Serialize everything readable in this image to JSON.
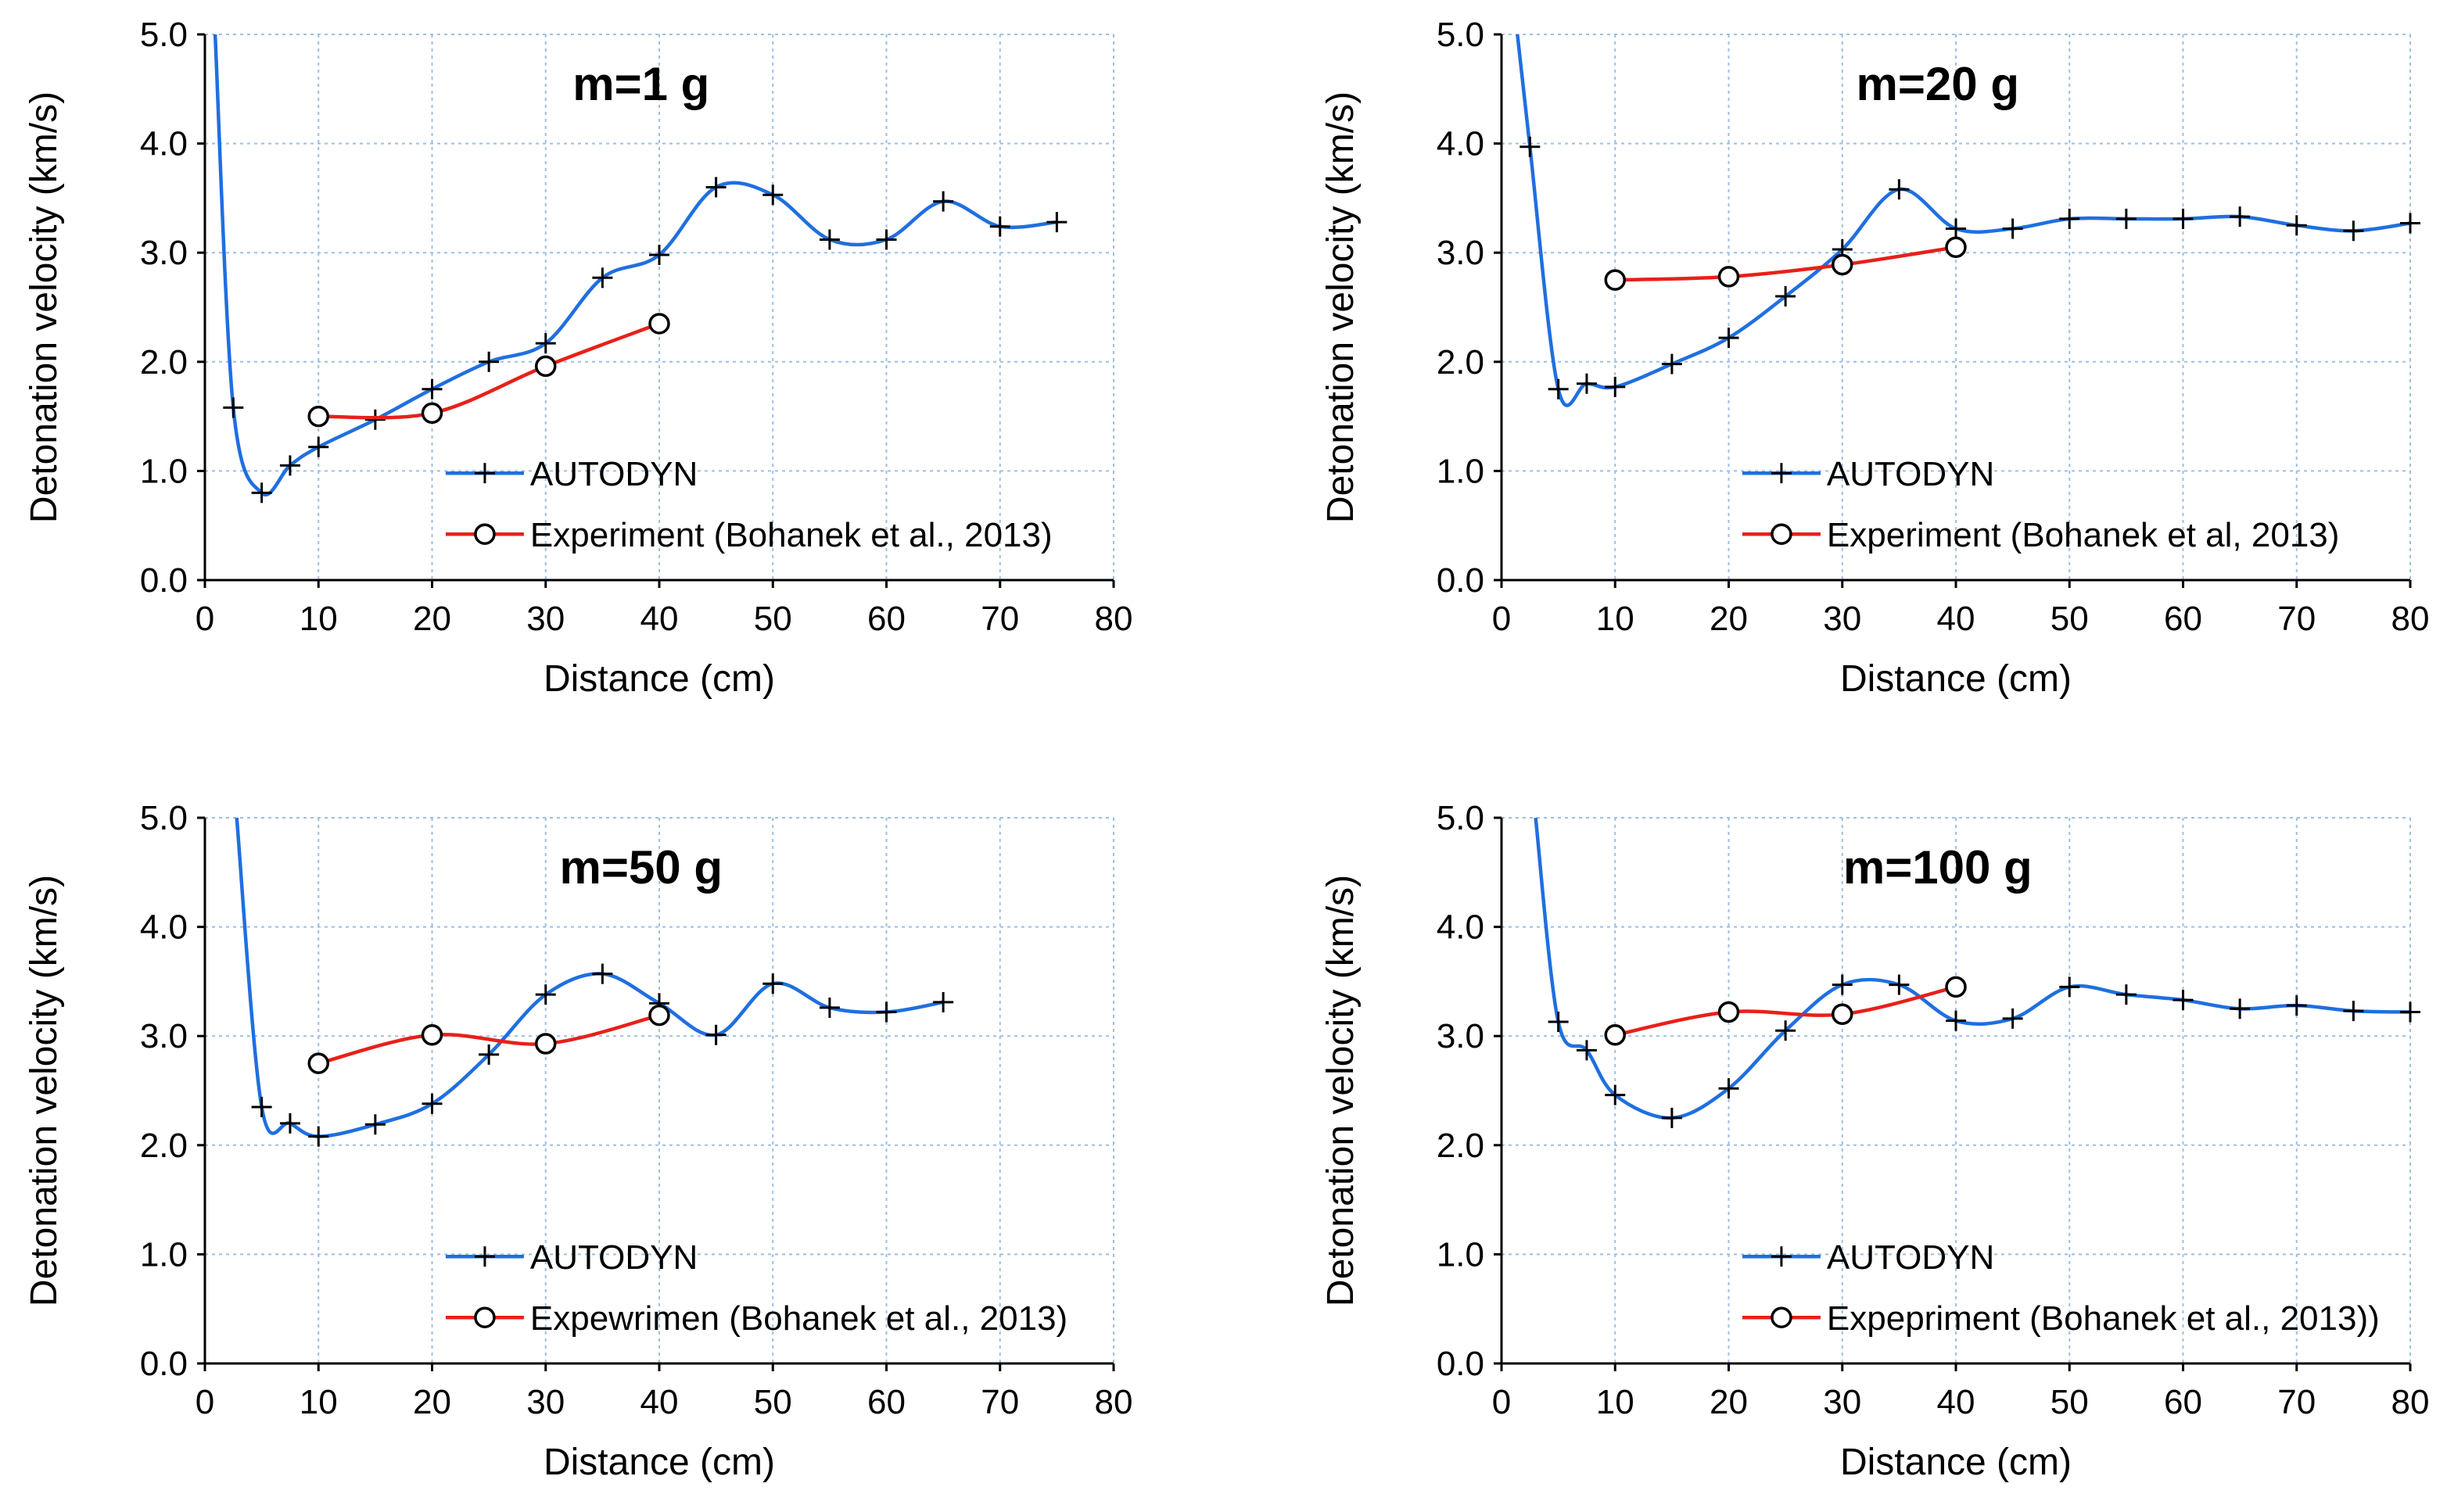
{
  "chart_data": [
    {
      "type": "line",
      "title": "m=1 g",
      "xlabel": "Distance (cm)",
      "ylabel": "Detonation velocity (km/s)",
      "xlim": [
        0,
        80
      ],
      "ylim": [
        0,
        5
      ],
      "xticks": [
        "0",
        "10",
        "20",
        "30",
        "40",
        "50",
        "60",
        "70",
        "80"
      ],
      "yticks": [
        "0.0",
        "1.0",
        "2.0",
        "3.0",
        "4.0",
        "5.0"
      ],
      "grid": true,
      "legend_position": "bottom-center",
      "series": [
        {
          "name": "AUTODYN",
          "color": "#1f6fe0",
          "marker": "plus",
          "x": [
            0.9,
            2.5,
            5,
            7.5,
            10,
            15,
            20,
            25,
            30,
            35,
            40,
            45,
            50,
            55,
            60,
            65,
            70,
            75
          ],
          "y": [
            5.0,
            1.58,
            0.8,
            1.05,
            1.22,
            1.47,
            1.75,
            2.0,
            2.17,
            2.77,
            2.98,
            3.6,
            3.53,
            3.12,
            3.12,
            3.47,
            3.24,
            3.28
          ],
          "marker_from_index": 1
        },
        {
          "name": "Experiment (Bohanek et al., 2013)",
          "color": "#e8201a",
          "marker": "circle",
          "x": [
            10,
            20,
            30,
            40
          ],
          "y": [
            1.5,
            1.53,
            1.96,
            2.35
          ],
          "marker_from_index": 0
        }
      ]
    },
    {
      "type": "line",
      "title": "m=20 g",
      "xlabel": "Distance (cm)",
      "ylabel": "Detonation velocity (km/s)",
      "xlim": [
        0,
        80
      ],
      "ylim": [
        0,
        5
      ],
      "xticks": [
        "0",
        "10",
        "20",
        "30",
        "40",
        "50",
        "60",
        "70",
        "80"
      ],
      "yticks": [
        "0.0",
        "1.0",
        "2.0",
        "3.0",
        "4.0",
        "5.0"
      ],
      "grid": true,
      "legend_position": "bottom-center",
      "series": [
        {
          "name": "AUTODYN",
          "color": "#1f6fe0",
          "marker": "plus",
          "x": [
            1.4,
            2.5,
            5,
            7.5,
            10,
            15,
            20,
            25,
            30,
            35,
            40,
            45,
            50,
            55,
            60,
            65,
            70,
            75,
            80
          ],
          "y": [
            5.0,
            3.97,
            1.75,
            1.8,
            1.77,
            1.98,
            2.22,
            2.6,
            3.03,
            3.58,
            3.22,
            3.22,
            3.31,
            3.31,
            3.31,
            3.33,
            3.25,
            3.2,
            3.27
          ],
          "marker_from_index": 1
        },
        {
          "name": "Experiment (Bohanek et al, 2013)",
          "color": "#e8201a",
          "marker": "circle",
          "x": [
            10,
            20,
            30,
            40
          ],
          "y": [
            2.75,
            2.78,
            2.89,
            3.05
          ],
          "marker_from_index": 0
        }
      ]
    },
    {
      "type": "line",
      "title": "m=50 g",
      "xlabel": "Distance (cm)",
      "ylabel": "Detonation velocity (km/s)",
      "xlim": [
        0,
        80
      ],
      "ylim": [
        0,
        5
      ],
      "xticks": [
        "0",
        "10",
        "20",
        "30",
        "40",
        "50",
        "60",
        "70",
        "80"
      ],
      "yticks": [
        "0.0",
        "1.0",
        "2.0",
        "3.0",
        "4.0",
        "5.0"
      ],
      "grid": true,
      "legend_position": "bottom-center",
      "series": [
        {
          "name": "AUTODYN",
          "color": "#1f6fe0",
          "marker": "plus",
          "x": [
            2.8,
            5,
            7.5,
            10,
            15,
            20,
            25,
            30,
            35,
            40,
            45,
            50,
            55,
            60,
            65
          ],
          "y": [
            5.0,
            2.35,
            2.2,
            2.08,
            2.19,
            2.38,
            2.83,
            3.38,
            3.57,
            3.3,
            3.01,
            3.48,
            3.26,
            3.22,
            3.31
          ],
          "marker_from_index": 1
        },
        {
          "name": "Expewrimen (Bohanek et al., 2013)",
          "color": "#e8201a",
          "marker": "circle",
          "x": [
            10,
            20,
            30,
            40
          ],
          "y": [
            2.75,
            3.01,
            2.93,
            3.19
          ],
          "marker_from_index": 0
        }
      ]
    },
    {
      "type": "line",
      "title": "m=100 g",
      "xlabel": "Distance (cm)",
      "ylabel": "Detonation velocity (km/s)",
      "xlim": [
        0,
        80
      ],
      "ylim": [
        0,
        5
      ],
      "xticks": [
        "0",
        "10",
        "20",
        "30",
        "40",
        "50",
        "60",
        "70",
        "80"
      ],
      "yticks": [
        "0.0",
        "1.0",
        "2.0",
        "3.0",
        "4.0",
        "5.0"
      ],
      "grid": true,
      "legend_position": "bottom-center",
      "series": [
        {
          "name": "AUTODYN",
          "color": "#1f6fe0",
          "marker": "plus",
          "x": [
            3.0,
            5,
            7.5,
            10,
            15,
            20,
            25,
            30,
            35,
            40,
            45,
            50,
            55,
            60,
            65,
            70,
            75,
            80
          ],
          "y": [
            5.0,
            3.13,
            2.87,
            2.46,
            2.25,
            2.52,
            3.05,
            3.47,
            3.47,
            3.14,
            3.16,
            3.45,
            3.38,
            3.33,
            3.25,
            3.28,
            3.23,
            3.22
          ],
          "marker_from_index": 1
        },
        {
          "name": "Expepriment (Bohanek et al., 2013))",
          "color": "#e8201a",
          "marker": "circle",
          "x": [
            10,
            20,
            30,
            40
          ],
          "y": [
            3.01,
            3.22,
            3.2,
            3.45
          ],
          "marker_from_index": 0
        }
      ]
    }
  ]
}
